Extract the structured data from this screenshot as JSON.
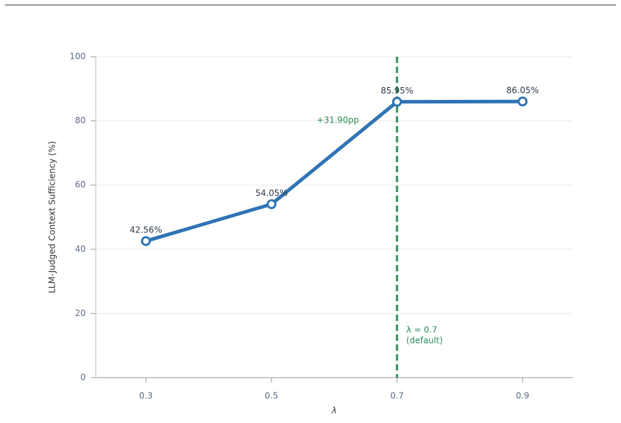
{
  "chart_data": {
    "type": "line",
    "x": [
      0.3,
      0.5,
      0.7,
      0.9
    ],
    "series": [
      {
        "color": "#2f74b5",
        "values": [
          42.56,
          54.05,
          85.95,
          86.05
        ],
        "value_labels": [
          "42.56%",
          "54.05%",
          "85.95%",
          "86.05%"
        ]
      }
    ],
    "xlabel": "λ",
    "ylabel": "LLM-Judged Context Sufficiency (%)",
    "xlim": [
      0.22,
      0.98
    ],
    "ylim": [
      0,
      100
    ],
    "xticks": [
      0.3,
      0.5,
      0.7,
      0.9
    ],
    "yticks": [
      0,
      20,
      40,
      60,
      80,
      100
    ],
    "grid": true,
    "vline": {
      "x": 0.7,
      "color": "#2e8b57",
      "label": [
        "λ = 0.7",
        "(default)"
      ]
    },
    "annotation": {
      "text": "+31.90pp",
      "color": "#2e8b57"
    }
  }
}
